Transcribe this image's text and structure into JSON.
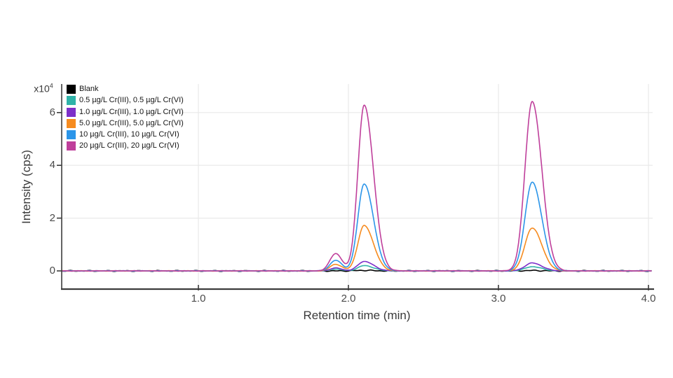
{
  "chart_data": {
    "type": "line",
    "title": "",
    "xlabel": "Retention time (min)",
    "ylabel": "Intensity (cps)",
    "y_unit_base": "x10",
    "y_unit_exponent": "4",
    "x_ticks": [
      "1.0",
      "2.0",
      "3.0",
      "4.0"
    ],
    "x_tick_values": [
      1.0,
      2.0,
      3.0,
      4.0
    ],
    "y_ticks": [
      "0",
      "2",
      "4",
      "6"
    ],
    "y_tick_values": [
      0,
      2,
      4,
      6
    ],
    "x_gridlines": [
      1.0,
      2.0,
      3.0,
      4.0
    ],
    "y_gridlines": [
      2,
      4,
      6
    ],
    "xlim": [
      0.09,
      4.02
    ],
    "ylim": [
      -0.7,
      7.05
    ],
    "grid": true,
    "legend_position": "top-left",
    "axis_color": "#3c3c3c",
    "grid_color": "#e9e9e9",
    "peak_retention_times_min": [
      2.11,
      3.23
    ],
    "pre_peak_retention_time_min": 1.92,
    "intensity_units": "cps, values in 10^4",
    "series": [
      {
        "name": "Blank",
        "color": "#000000",
        "noise": 0.02,
        "peaks": [
          {
            "center": 2.105,
            "height": 0.02,
            "sigma_left": 0.05,
            "sigma_right": 0.06
          },
          {
            "center": 3.225,
            "height": 0.015,
            "sigma_left": 0.05,
            "sigma_right": 0.06
          }
        ]
      },
      {
        "name": "0.5 µg/L Cr(III), 0.5 µg/L Cr(VI)",
        "color": "#2fb3a9",
        "noise": 0.008,
        "peaks": [
          {
            "center": 1.915,
            "height": 0.07,
            "sigma_left": 0.038,
            "sigma_right": 0.042
          },
          {
            "center": 2.105,
            "height": 0.2,
            "sigma_left": 0.042,
            "sigma_right": 0.062
          },
          {
            "center": 3.225,
            "height": 0.16,
            "sigma_left": 0.048,
            "sigma_right": 0.064
          }
        ]
      },
      {
        "name": "1.0 µg/L Cr(III), 1.0 µg/L Cr(VI)",
        "color": "#7d2fc9",
        "noise": 0.008,
        "peaks": [
          {
            "center": 1.915,
            "height": 0.11,
            "sigma_left": 0.038,
            "sigma_right": 0.042
          },
          {
            "center": 2.105,
            "height": 0.36,
            "sigma_left": 0.042,
            "sigma_right": 0.062
          },
          {
            "center": 3.225,
            "height": 0.3,
            "sigma_left": 0.048,
            "sigma_right": 0.064
          }
        ]
      },
      {
        "name": "5.0 µg/L Cr(III), 5.0 µg/L Cr(VI)",
        "color": "#f68b1f",
        "noise": 0.008,
        "peaks": [
          {
            "center": 1.915,
            "height": 0.25,
            "sigma_left": 0.038,
            "sigma_right": 0.042
          },
          {
            "center": 2.105,
            "height": 1.72,
            "sigma_left": 0.042,
            "sigma_right": 0.062
          },
          {
            "center": 3.225,
            "height": 1.63,
            "sigma_left": 0.048,
            "sigma_right": 0.064
          }
        ]
      },
      {
        "name": "10 µg/L Cr(III), 10 µg/L Cr(VI)",
        "color": "#2b95e9",
        "noise": 0.008,
        "peaks": [
          {
            "center": 1.915,
            "height": 0.4,
            "sigma_left": 0.038,
            "sigma_right": 0.042
          },
          {
            "center": 2.105,
            "height": 3.3,
            "sigma_left": 0.042,
            "sigma_right": 0.062
          },
          {
            "center": 3.225,
            "height": 3.36,
            "sigma_left": 0.048,
            "sigma_right": 0.064
          }
        ]
      },
      {
        "name": "20 µg/L Cr(III), 20 µg/L Cr(VI)",
        "color": "#bf3f9b",
        "noise": 0.008,
        "peaks": [
          {
            "center": 1.915,
            "height": 0.66,
            "sigma_left": 0.038,
            "sigma_right": 0.042
          },
          {
            "center": 2.105,
            "height": 6.28,
            "sigma_left": 0.042,
            "sigma_right": 0.062
          },
          {
            "center": 3.225,
            "height": 6.42,
            "sigma_left": 0.048,
            "sigma_right": 0.064
          }
        ]
      }
    ]
  }
}
